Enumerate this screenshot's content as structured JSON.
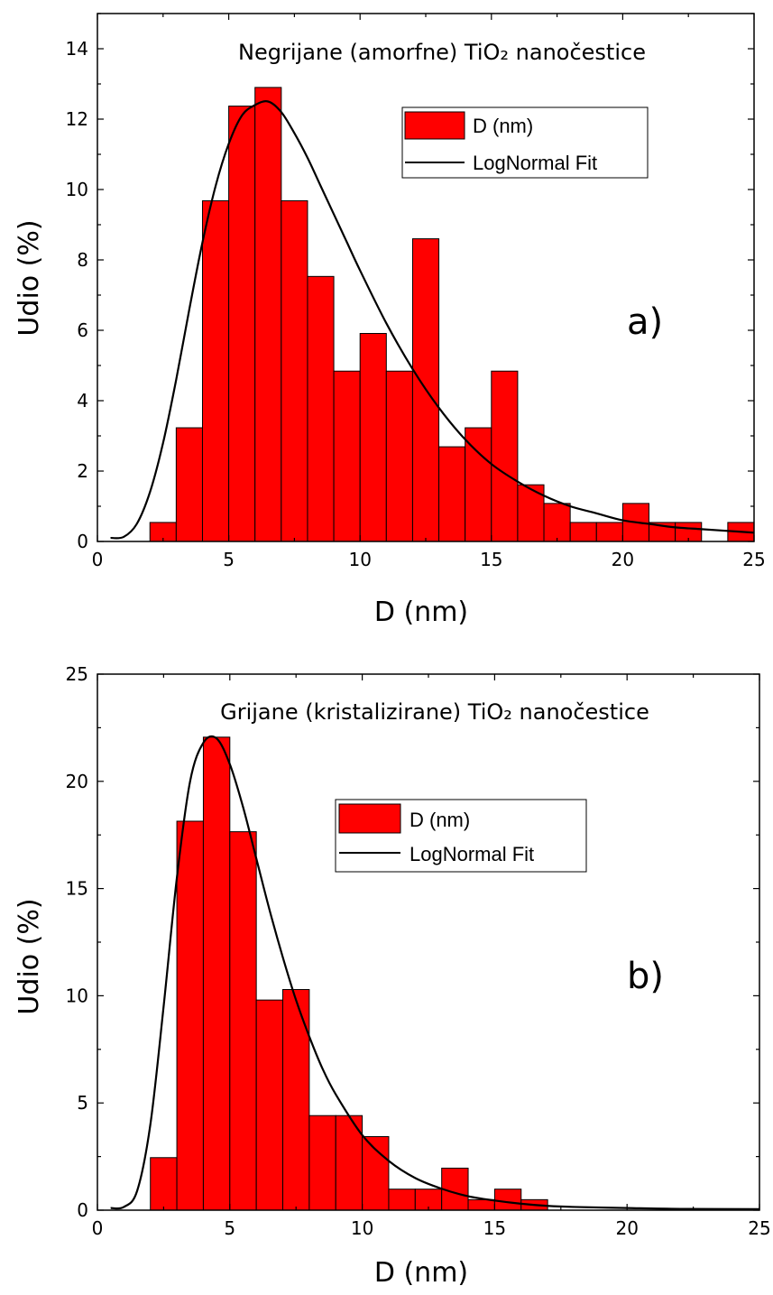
{
  "colors": {
    "bar_fill": "#ff0000",
    "bar_stroke": "#000000",
    "fit_line": "#000000"
  },
  "chart_data": [
    {
      "type": "bar",
      "title": "Negrijane (amorfne) TiO₂ nanočestice",
      "panel_label": "a)",
      "xlabel": "D (nm)",
      "ylabel": "Udio (%)",
      "xlim": [
        0,
        25
      ],
      "ylim": [
        0,
        15
      ],
      "xticks": [
        0,
        5,
        10,
        15,
        20,
        25
      ],
      "yticks": [
        0,
        2,
        4,
        6,
        8,
        10,
        12,
        14
      ],
      "bin_width": 1,
      "legend": {
        "position": "top-right",
        "bar_label": "D (nm)",
        "line_label": "LogNormal Fit"
      },
      "bins": [
        {
          "x0": 2,
          "x1": 3,
          "value": 0.54
        },
        {
          "x0": 3,
          "x1": 4,
          "value": 3.23
        },
        {
          "x0": 4,
          "x1": 5,
          "value": 9.68
        },
        {
          "x0": 5,
          "x1": 6,
          "value": 12.37
        },
        {
          "x0": 6,
          "x1": 7,
          "value": 12.9
        },
        {
          "x0": 7,
          "x1": 8,
          "value": 9.68
        },
        {
          "x0": 8,
          "x1": 9,
          "value": 7.53
        },
        {
          "x0": 9,
          "x1": 10,
          "value": 4.84
        },
        {
          "x0": 10,
          "x1": 11,
          "value": 5.91
        },
        {
          "x0": 11,
          "x1": 12,
          "value": 4.84
        },
        {
          "x0": 12,
          "x1": 13,
          "value": 8.6
        },
        {
          "x0": 13,
          "x1": 14,
          "value": 2.69
        },
        {
          "x0": 14,
          "x1": 15,
          "value": 3.23
        },
        {
          "x0": 15,
          "x1": 16,
          "value": 4.84
        },
        {
          "x0": 16,
          "x1": 17,
          "value": 1.61
        },
        {
          "x0": 17,
          "x1": 18,
          "value": 1.08
        },
        {
          "x0": 18,
          "x1": 19,
          "value": 0.54
        },
        {
          "x0": 19,
          "x1": 20,
          "value": 0.54
        },
        {
          "x0": 20,
          "x1": 21,
          "value": 1.08
        },
        {
          "x0": 21,
          "x1": 22,
          "value": 0.54
        },
        {
          "x0": 22,
          "x1": 23,
          "value": 0.54
        },
        {
          "x0": 24,
          "x1": 25,
          "value": 0.54
        }
      ],
      "fit": {
        "name": "LogNormal Fit",
        "x": [
          0.5,
          1,
          1.5,
          2,
          2.5,
          3,
          3.5,
          4,
          4.5,
          5,
          5.5,
          6,
          6.5,
          7,
          7.5,
          8,
          8.5,
          9,
          9.5,
          10,
          11,
          12,
          13,
          14,
          15,
          16,
          17,
          18,
          19,
          20,
          21,
          22,
          23,
          24,
          25
        ],
        "y": [
          0.1,
          0.13,
          0.5,
          1.4,
          2.8,
          4.6,
          6.6,
          8.5,
          10.1,
          11.3,
          12.1,
          12.4,
          12.5,
          12.2,
          11.6,
          10.9,
          10.1,
          9.3,
          8.5,
          7.7,
          6.2,
          4.9,
          3.8,
          2.9,
          2.2,
          1.7,
          1.3,
          1.0,
          0.8,
          0.6,
          0.5,
          0.4,
          0.35,
          0.3,
          0.25
        ]
      }
    },
    {
      "type": "bar",
      "title": "Grijane (kristalizirane) TiO₂ nanočestice",
      "panel_label": "b)",
      "xlabel": "D (nm)",
      "ylabel": "Udio (%)",
      "xlim": [
        0,
        25
      ],
      "ylim": [
        0,
        25
      ],
      "xticks": [
        0,
        5,
        10,
        15,
        20,
        25
      ],
      "yticks": [
        0,
        5,
        10,
        15,
        20,
        25
      ],
      "bin_width": 1,
      "legend": {
        "position": "top-right",
        "bar_label": "D (nm)",
        "line_label": "LogNormal Fit"
      },
      "bins": [
        {
          "x0": 2,
          "x1": 3,
          "value": 2.45
        },
        {
          "x0": 3,
          "x1": 4,
          "value": 18.14
        },
        {
          "x0": 4,
          "x1": 5,
          "value": 22.06
        },
        {
          "x0": 5,
          "x1": 6,
          "value": 17.65
        },
        {
          "x0": 6,
          "x1": 7,
          "value": 9.8
        },
        {
          "x0": 7,
          "x1": 8,
          "value": 10.29
        },
        {
          "x0": 8,
          "x1": 9,
          "value": 4.41
        },
        {
          "x0": 9,
          "x1": 10,
          "value": 4.41
        },
        {
          "x0": 10,
          "x1": 11,
          "value": 3.43
        },
        {
          "x0": 11,
          "x1": 12,
          "value": 0.98
        },
        {
          "x0": 12,
          "x1": 13,
          "value": 0.98
        },
        {
          "x0": 13,
          "x1": 14,
          "value": 1.96
        },
        {
          "x0": 14,
          "x1": 15,
          "value": 0.49
        },
        {
          "x0": 15,
          "x1": 16,
          "value": 0.98
        },
        {
          "x0": 16,
          "x1": 17,
          "value": 0.49
        }
      ],
      "fit": {
        "name": "LogNormal Fit",
        "x": [
          0.5,
          1,
          1.5,
          2,
          2.5,
          3,
          3.5,
          4,
          4.5,
          5,
          5.5,
          6,
          6.5,
          7,
          7.5,
          8,
          8.5,
          9,
          10,
          11,
          12,
          13,
          14,
          15,
          16,
          17,
          18,
          20,
          22,
          25
        ],
        "y": [
          0.1,
          0.15,
          0.9,
          4.0,
          9.5,
          15.5,
          20.0,
          21.8,
          22.0,
          20.8,
          18.8,
          16.4,
          14.0,
          11.8,
          9.8,
          8.1,
          6.6,
          5.4,
          3.5,
          2.3,
          1.5,
          1.0,
          0.65,
          0.45,
          0.3,
          0.2,
          0.15,
          0.1,
          0.06,
          0.05
        ]
      }
    }
  ]
}
